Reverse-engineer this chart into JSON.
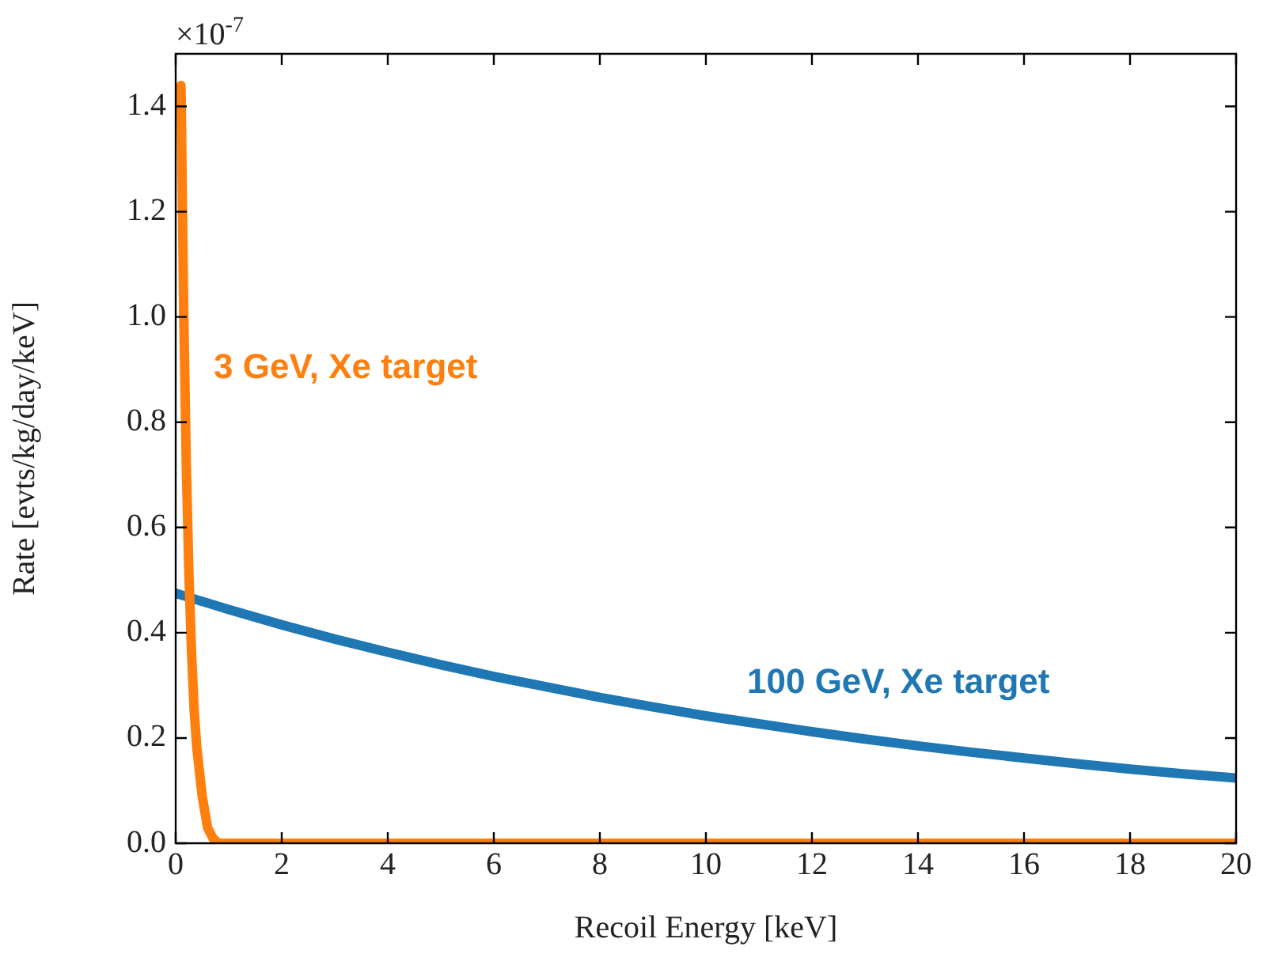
{
  "chart_data": {
    "type": "line",
    "xlabel": "Recoil Energy [keV]",
    "ylabel": "Rate [evts/kg/day/keV]",
    "annotations": [
      "×10$^{-7}$"
    ],
    "xlim": [
      0,
      20
    ],
    "xticks": [
      0,
      2,
      4,
      6,
      8,
      10,
      12,
      14,
      16,
      18,
      20
    ],
    "ylim": [
      0,
      1.5
    ],
    "yticks": [
      {
        "value": 0,
        "label": "0.0"
      },
      0.2,
      0.4,
      0.6,
      0.8,
      {
        "value": 1,
        "label": "1.0"
      },
      1.2,
      1.4
    ],
    "grid": false,
    "legend": false,
    "marker": "none",
    "line_style": "solid",
    "series": [
      {
        "name": "3 GeV, Xe target",
        "color": "#ff7f0e",
        "x": [
          0.1,
          0.15,
          0.2,
          0.25,
          0.3,
          0.35,
          0.4,
          0.5,
          0.6,
          0.7,
          0.8,
          2,
          4,
          6,
          8,
          10,
          12,
          14,
          16,
          18,
          20
        ],
        "values": [
          1.44,
          1.02,
          0.72,
          0.51,
          0.36,
          0.25,
          0.18,
          0.09,
          0.03,
          0.01,
          0,
          0,
          0,
          0,
          0,
          0,
          0,
          0,
          0,
          0,
          0
        ]
      },
      {
        "name": "100 GeV, Xe target",
        "color": "#1f77b4",
        "x": [
          0,
          1,
          2,
          3,
          4,
          5,
          6,
          7,
          8,
          9,
          10,
          11,
          12,
          13,
          14,
          15,
          16,
          17,
          18,
          19,
          20
        ],
        "values": [
          0.475,
          0.444,
          0.415,
          0.388,
          0.363,
          0.339,
          0.317,
          0.297,
          0.277,
          0.259,
          0.242,
          0.227,
          0.212,
          0.198,
          0.185,
          0.173,
          0.162,
          0.151,
          0.141,
          0.132,
          0.124
        ]
      }
    ]
  }
}
